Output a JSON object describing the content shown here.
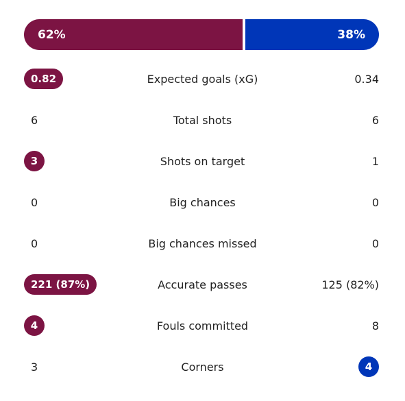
{
  "colors": {
    "home": "#7c1443",
    "away": "#0036b8"
  },
  "possession": {
    "home": {
      "label": "62%",
      "value": 62
    },
    "away": {
      "label": "38%",
      "value": 38
    }
  },
  "stats": [
    {
      "label": "Expected goals (xG)",
      "home": "0.82",
      "away": "0.34",
      "highlight": "home"
    },
    {
      "label": "Total shots",
      "home": "6",
      "away": "6",
      "highlight": ""
    },
    {
      "label": "Shots on target",
      "home": "3",
      "away": "1",
      "highlight": "home"
    },
    {
      "label": "Big chances",
      "home": "0",
      "away": "0",
      "highlight": ""
    },
    {
      "label": "Big chances missed",
      "home": "0",
      "away": "0",
      "highlight": ""
    },
    {
      "label": "Accurate passes",
      "home": "221 (87%)",
      "away": "125 (82%)",
      "highlight": "home"
    },
    {
      "label": "Fouls committed",
      "home": "4",
      "away": "8",
      "highlight": "home"
    },
    {
      "label": "Corners",
      "home": "3",
      "away": "4",
      "highlight": "away"
    }
  ]
}
